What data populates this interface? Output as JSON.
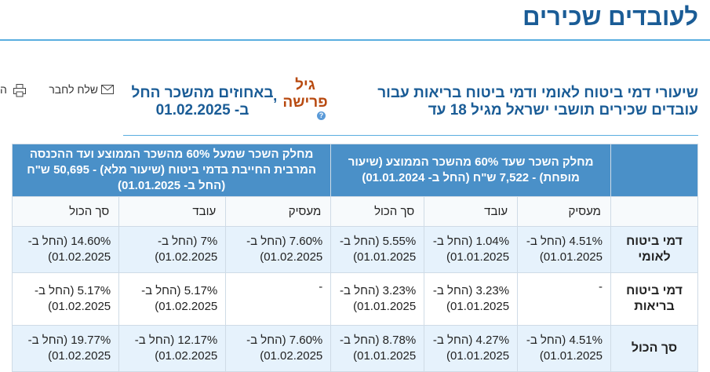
{
  "page_title": "לעובדים שכירים",
  "heading": "שיעורי דמי ביטוח לאומי ודמי ביטוח בריאות עבור עובדים שכירים תושבי ישראל מגיל 18 עד",
  "age_link": "גיל פרישה",
  "heading_suffix": "באחוזים מהשכר החל ב- 01.02.2025",
  "comma": ",",
  "help_icon": "?",
  "tools": {
    "send_label": "שלח לחבר",
    "cut_label": "ה"
  },
  "table": {
    "groups": [
      "מחלק השכר שעד 60% מהשכר הממוצע (שיעור מופחת) - 7,522 ש\"ח (החל ב- 01.01.2024)",
      "מחלק השכר שמעל 60% מהשכר הממוצע ועד ההכנסה המרבית החייבת בדמי ביטוח (שיעור מלא) - 50,695 ש\"ח (החל ב- 01.01.2025)"
    ],
    "subheaders": [
      "מעסיק",
      "עובד",
      "סך הכול",
      "מעסיק",
      "עובד",
      "סך הכול"
    ],
    "rows": [
      {
        "label": "דמי ביטוח לאומי",
        "cells": [
          "4.51% (החל ב- 01.01.2025)",
          "1.04% (החל ב- 01.01.2025)",
          "5.55% (החל ב- 01.01.2025)",
          "7.60% (החל ב- 01.02.2025)",
          "7% (החל ב- 01.02.2025)",
          "14.60% (החל ב- 01.02.2025)"
        ]
      },
      {
        "label": "דמי ביטוח בריאות",
        "cells": [
          "-",
          "3.23% (החל ב- 01.01.2025)",
          "3.23% (החל ב- 01.01.2025)",
          "-",
          "5.17% (החל ב- 01.02.2025)",
          "5.17% (החל ב- 01.02.2025)"
        ]
      },
      {
        "label": "סך הכול",
        "cells": [
          "4.51% (החל ב- 01.01.2025)",
          "4.27% (החל ב- 01.01.2025)",
          "8.78% (החל ב- 01.01.2025)",
          "7.60% (החל ב- 01.02.2025)",
          "12.17% (החל ב- 01.02.2025)",
          "19.77% (החל ב- 01.02.2025)"
        ]
      }
    ]
  },
  "colors": {
    "title": "#1a5c96",
    "header_bg": "#4a90c8",
    "row_alt": "#e6f2fc",
    "age_link": "#b84a10"
  }
}
